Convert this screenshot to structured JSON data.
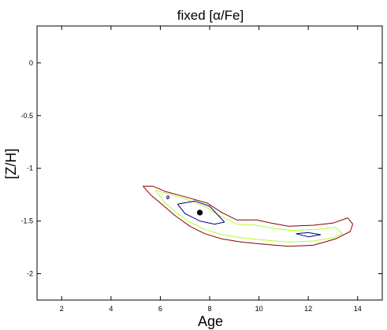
{
  "chart_data": {
    "type": "contour",
    "title": "fixed [α/Fe]",
    "xlabel": "Age",
    "ylabel": "[Z/H]",
    "xlim": [
      1,
      15
    ],
    "ylim": [
      -2.25,
      0.35
    ],
    "xticks": [
      2,
      4,
      6,
      8,
      10,
      12,
      14
    ],
    "xtick_labels": [
      "2",
      "4",
      "6",
      "8",
      "10",
      "12",
      "14"
    ],
    "yticks": [
      0,
      -0.5,
      -1,
      -1.5,
      -2
    ],
    "ytick_labels": [
      "0",
      "-0.5",
      "-1",
      "-1.5",
      "-2"
    ],
    "grid": false,
    "series": [
      {
        "color": "#8b0000",
        "points": [
          [
            5.3,
            -1.17
          ],
          [
            5.7,
            -1.17
          ],
          [
            6.2,
            -1.22
          ],
          [
            7.0,
            -1.27
          ],
          [
            7.9,
            -1.33
          ],
          [
            8.5,
            -1.42
          ],
          [
            9.1,
            -1.49
          ],
          [
            9.9,
            -1.49
          ],
          [
            10.5,
            -1.52
          ],
          [
            11.2,
            -1.55
          ],
          [
            12.2,
            -1.54
          ],
          [
            13.0,
            -1.52
          ],
          [
            13.6,
            -1.47
          ],
          [
            13.8,
            -1.53
          ],
          [
            13.7,
            -1.6
          ],
          [
            13.1,
            -1.67
          ],
          [
            12.2,
            -1.73
          ],
          [
            11.2,
            -1.74
          ],
          [
            10.2,
            -1.72
          ],
          [
            9.3,
            -1.7
          ],
          [
            8.5,
            -1.67
          ],
          [
            7.8,
            -1.62
          ],
          [
            7.2,
            -1.55
          ],
          [
            6.6,
            -1.45
          ],
          [
            6.1,
            -1.35
          ],
          [
            5.6,
            -1.25
          ],
          [
            5.3,
            -1.17
          ]
        ]
      },
      {
        "color": "#adff2f",
        "points": [
          [
            5.8,
            -1.21
          ],
          [
            6.3,
            -1.24
          ],
          [
            7.0,
            -1.29
          ],
          [
            7.8,
            -1.36
          ],
          [
            8.4,
            -1.45
          ],
          [
            9.1,
            -1.53
          ],
          [
            9.9,
            -1.54
          ],
          [
            10.6,
            -1.57
          ],
          [
            11.3,
            -1.59
          ],
          [
            12.3,
            -1.58
          ],
          [
            13.1,
            -1.56
          ],
          [
            13.4,
            -1.62
          ],
          [
            13.0,
            -1.66
          ],
          [
            12.2,
            -1.69
          ],
          [
            11.2,
            -1.7
          ],
          [
            10.2,
            -1.68
          ],
          [
            9.3,
            -1.66
          ],
          [
            8.5,
            -1.63
          ],
          [
            7.8,
            -1.58
          ],
          [
            7.2,
            -1.51
          ],
          [
            6.7,
            -1.43
          ],
          [
            6.2,
            -1.33
          ],
          [
            5.8,
            -1.21
          ]
        ]
      },
      {
        "color": "#00008b",
        "points": [
          [
            6.7,
            -1.34
          ],
          [
            7.4,
            -1.31
          ],
          [
            8.0,
            -1.36
          ],
          [
            8.6,
            -1.51
          ],
          [
            8.2,
            -1.53
          ],
          [
            7.6,
            -1.5
          ],
          [
            7.0,
            -1.43
          ],
          [
            6.7,
            -1.34
          ]
        ]
      },
      {
        "color": "#00008b",
        "points": [
          [
            11.5,
            -1.62
          ],
          [
            12.0,
            -1.61
          ],
          [
            12.5,
            -1.63
          ],
          [
            12.0,
            -1.65
          ],
          [
            11.5,
            -1.62
          ]
        ]
      },
      {
        "color": "#00008b",
        "points": [
          [
            6.25,
            -1.27
          ],
          [
            6.32,
            -1.26
          ],
          [
            6.36,
            -1.28
          ],
          [
            6.28,
            -1.29
          ],
          [
            6.25,
            -1.27
          ]
        ]
      }
    ],
    "marker": {
      "x": 7.6,
      "y": -1.42,
      "color": "#000000"
    }
  }
}
